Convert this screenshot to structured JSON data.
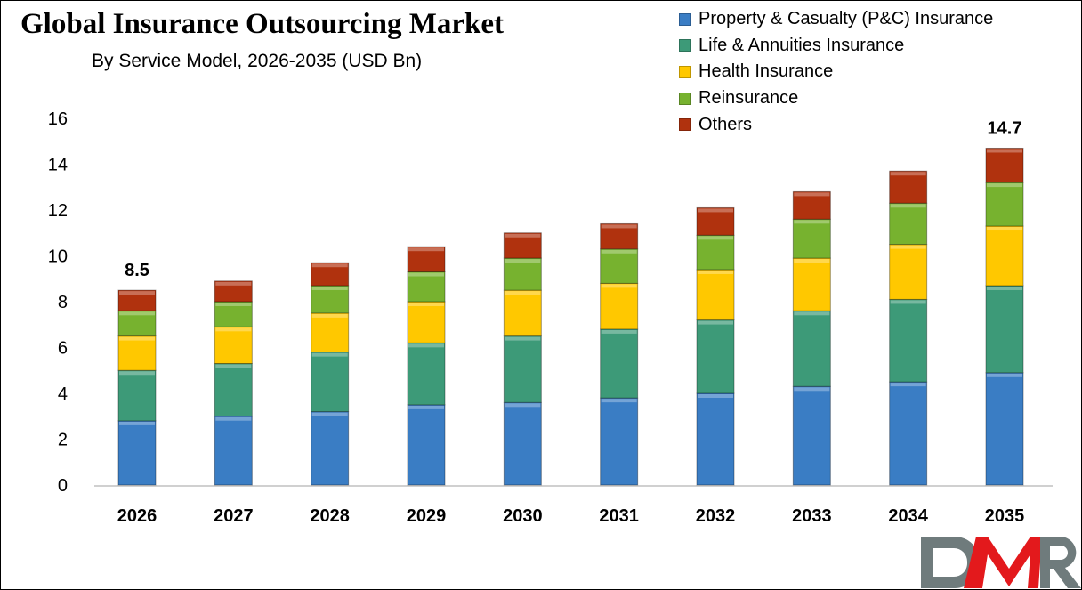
{
  "chart_data": {
    "type": "bar",
    "stacked": true,
    "title": "Global Insurance Outsourcing Market",
    "subtitle": "By Service Model, 2026-2035 (USD Bn)",
    "xlabel": "",
    "ylabel": "",
    "ylim": [
      0,
      16
    ],
    "yticks": [
      0,
      2,
      4,
      6,
      8,
      10,
      12,
      14,
      16
    ],
    "grid": false,
    "legend_position": "top-right",
    "categories": [
      "2026",
      "2027",
      "2028",
      "2029",
      "2030",
      "2031",
      "2032",
      "2033",
      "2034",
      "2035"
    ],
    "series": [
      {
        "name": "Property & Casualty (P&C) Insurance",
        "color": "#3a7dc4",
        "values": [
          2.8,
          3.0,
          3.2,
          3.5,
          3.6,
          3.8,
          4.0,
          4.3,
          4.5,
          4.9
        ]
      },
      {
        "name": "Life & Annuities Insurance",
        "color": "#3d9a78",
        "values": [
          2.2,
          2.3,
          2.6,
          2.7,
          2.9,
          3.0,
          3.2,
          3.3,
          3.6,
          3.8
        ]
      },
      {
        "name": "Health Insurance",
        "color": "#ffc800",
        "values": [
          1.5,
          1.6,
          1.7,
          1.8,
          2.0,
          2.0,
          2.2,
          2.3,
          2.4,
          2.6
        ]
      },
      {
        "name": "Reinsurance",
        "color": "#77b22f",
        "values": [
          1.1,
          1.1,
          1.2,
          1.3,
          1.4,
          1.5,
          1.5,
          1.7,
          1.8,
          1.9
        ]
      },
      {
        "name": "Others",
        "color": "#b0320e",
        "values": [
          0.9,
          0.9,
          1.0,
          1.1,
          1.1,
          1.1,
          1.2,
          1.2,
          1.4,
          1.5
        ]
      }
    ],
    "annotations": [
      {
        "category": "2026",
        "text": "8.5"
      },
      {
        "category": "2035",
        "text": "14.7"
      }
    ]
  },
  "logo": {
    "text": "DMR",
    "colors": {
      "D": "#6f7b7c",
      "M": "#e3191c",
      "R": "#6f7b7c"
    }
  }
}
